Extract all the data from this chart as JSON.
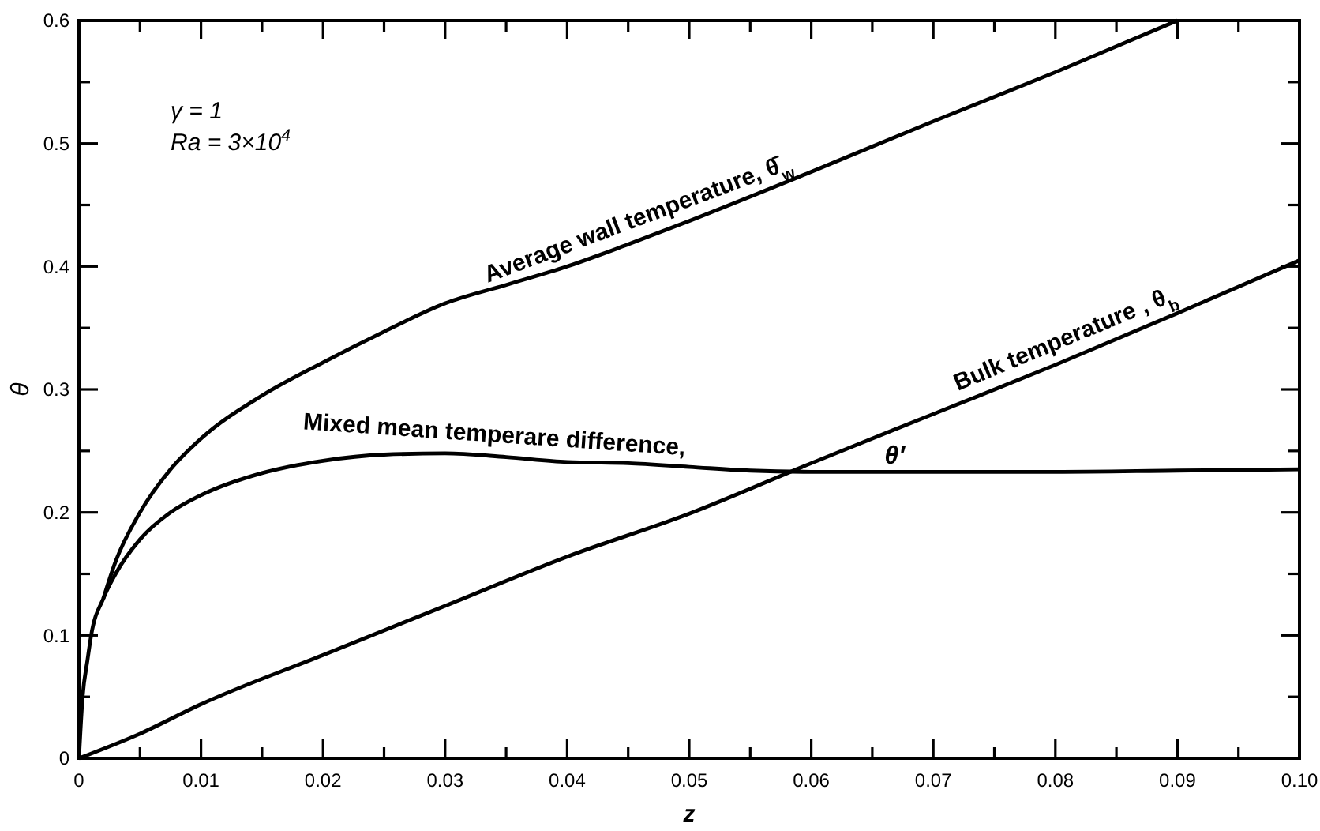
{
  "chart_data": {
    "type": "line",
    "xlabel": "z",
    "ylabel": "θ",
    "xlim": [
      0,
      0.1
    ],
    "ylim": [
      0,
      0.6
    ],
    "xticks": [
      0,
      {
        "value": 0.005,
        "label": null
      },
      {
        "value": 0.01,
        "label": "0.01"
      },
      {
        "value": 0.015,
        "label": null
      },
      {
        "value": 0.02,
        "label": "0.02"
      },
      {
        "value": 0.025,
        "label": null
      },
      {
        "value": 0.03,
        "label": "0.03"
      },
      {
        "value": 0.035,
        "label": null
      },
      {
        "value": 0.04,
        "label": "0.04"
      },
      {
        "value": 0.045,
        "label": null
      },
      {
        "value": 0.05,
        "label": "0.05"
      },
      {
        "value": 0.055,
        "label": null
      },
      {
        "value": 0.06,
        "label": "0.06"
      },
      {
        "value": 0.065,
        "label": null
      },
      {
        "value": 0.07,
        "label": "0.07"
      },
      {
        "value": 0.075,
        "label": null
      },
      {
        "value": 0.08,
        "label": "0.08"
      },
      {
        "value": 0.085,
        "label": null
      },
      {
        "value": 0.09,
        "label": "0.09"
      },
      {
        "value": 0.095,
        "label": null
      },
      {
        "value": 0.1,
        "label": "0.10"
      }
    ],
    "yticks": [
      0,
      {
        "value": 0.05,
        "label": null
      },
      0.1,
      {
        "value": 0.15,
        "label": null
      },
      0.2,
      {
        "value": 0.25,
        "label": null
      },
      0.3,
      {
        "value": 0.35,
        "label": null
      },
      0.4,
      {
        "value": 0.45,
        "label": null
      },
      0.5,
      {
        "value": 0.55,
        "label": null
      },
      0.6
    ],
    "grid": false,
    "marker": "none",
    "line_style": "solid",
    "series": [
      {
        "name": "Average wall temperature, θ̄$_{w}$",
        "color": "#000000",
        "x": [
          0.002,
          0.003,
          0.005,
          0.0075,
          0.01,
          0.015,
          0.02,
          0.025,
          0.03,
          0.035,
          0.04,
          0.045,
          0.05,
          0.06,
          0.07,
          0.08,
          0.09
        ],
        "values": [
          0.13,
          0.16,
          0.2,
          0.235,
          0.26,
          0.295,
          0.322,
          0.347,
          0.37,
          0.385,
          0.4,
          0.418,
          0.437,
          0.477,
          0.518,
          0.558,
          0.6
        ]
      },
      {
        "name": "Mixed mean temperare difference,",
        "color": "#000000",
        "x": [
          0,
          0.0003,
          0.0007,
          0.001,
          0.002,
          0.003,
          0.005,
          0.0075,
          0.01,
          0.015,
          0.02,
          0.025,
          0.03,
          0.035,
          0.04,
          0.045,
          0.05,
          0.055,
          0.06,
          0.07,
          0.08,
          0.09,
          0.1
        ],
        "values": [
          0,
          0.05,
          0.08,
          0.1,
          0.13,
          0.15,
          0.178,
          0.2,
          0.214,
          0.232,
          0.242,
          0.247,
          0.248,
          0.245,
          0.241,
          0.24,
          0.237,
          0.234,
          0.233,
          0.233,
          0.233,
          0.234,
          0.235
        ]
      },
      {
        "name": "Bulk temperature , θ$_{b}$",
        "color": "#000000",
        "x": [
          0,
          0.005,
          0.01,
          0.02,
          0.03,
          0.04,
          0.05,
          0.06,
          0.07,
          0.08,
          0.09,
          0.1
        ],
        "values": [
          0,
          0.02,
          0.044,
          0.084,
          0.124,
          0.164,
          0.199,
          0.24,
          0.28,
          0.32,
          0.362,
          0.405
        ]
      }
    ],
    "annotations": [
      "γ = 1",
      "Ra = 3×10$^{4}$",
      {
        "text": "θ′",
        "x": 0.066,
        "y": 0.233
      }
    ]
  }
}
